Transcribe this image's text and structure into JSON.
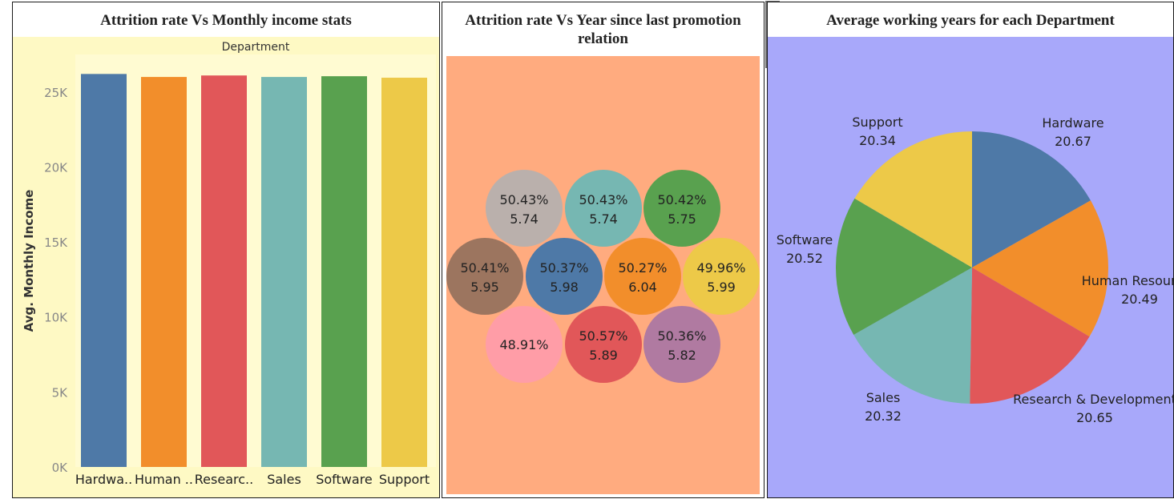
{
  "panels": {
    "left": {
      "title": "Attrition rate Vs Monthly income stats"
    },
    "middle": {
      "title": "Attrition rate Vs Year since last promotion relation"
    },
    "right": {
      "title": "Average working years for each Department"
    }
  },
  "colors": {
    "left_bg": "#fef9c4",
    "middle_bg": "#ffab7f",
    "right_bg": "#a8a8fa",
    "toolbar": "#6b6b6b"
  },
  "toolbar_icons": [
    "close-icon",
    "popout-icon",
    "filter-icon",
    "dropdown-icon"
  ],
  "chart_data": [
    {
      "type": "bar",
      "header": "Department",
      "ylabel": "Avg. Monthly Income",
      "xlabel": "",
      "ylim": [
        0,
        27500
      ],
      "yticks": [
        {
          "value": 0,
          "label": "0K"
        },
        {
          "value": 5000,
          "label": "5K"
        },
        {
          "value": 10000,
          "label": "10K"
        },
        {
          "value": 15000,
          "label": "15K"
        },
        {
          "value": 20000,
          "label": "20K"
        },
        {
          "value": 25000,
          "label": "25K"
        }
      ],
      "categories": [
        "Hardwa..",
        "Human ..",
        "Researc..",
        "Sales",
        "Software",
        "Support"
      ],
      "values": [
        26200,
        26000,
        26100,
        26000,
        26050,
        25950
      ],
      "colors": [
        "#4e79a7",
        "#f28e2b",
        "#e15759",
        "#76b7b2",
        "#59a14f",
        "#edc948"
      ]
    },
    {
      "type": "bubble",
      "bubbles": [
        {
          "attrition": "50.43%",
          "years": "5.74",
          "color": "#bab0ac"
        },
        {
          "attrition": "50.43%",
          "years": "5.74",
          "color": "#76b7b2"
        },
        {
          "attrition": "50.42%",
          "years": "5.75",
          "color": "#59a14f"
        },
        {
          "attrition": "50.41%",
          "years": "5.95",
          "color": "#9c755f"
        },
        {
          "attrition": "50.37%",
          "years": "5.98",
          "color": "#4e79a7"
        },
        {
          "attrition": "50.27%",
          "years": "6.04",
          "color": "#f28e2b"
        },
        {
          "attrition": "49.96%",
          "years": "5.99",
          "color": "#edc948"
        },
        {
          "attrition": "48.91%",
          "years": "",
          "color": "#ff9da7"
        },
        {
          "attrition": "50.57%",
          "years": "5.89",
          "color": "#e15759"
        },
        {
          "attrition": "50.36%",
          "years": "5.82",
          "color": "#b07aa1"
        }
      ]
    },
    {
      "type": "pie",
      "slices": [
        {
          "label": "Hardware",
          "value": 20.67,
          "color": "#4e79a7"
        },
        {
          "label": "Human Resources",
          "value": 20.49,
          "color": "#f28e2b"
        },
        {
          "label": "Research & Development",
          "value": 20.65,
          "color": "#e15759"
        },
        {
          "label": "Sales",
          "value": 20.32,
          "color": "#76b7b2"
        },
        {
          "label": "Software",
          "value": 20.52,
          "color": "#59a14f"
        },
        {
          "label": "Support",
          "value": 20.34,
          "color": "#edc948"
        }
      ]
    }
  ]
}
